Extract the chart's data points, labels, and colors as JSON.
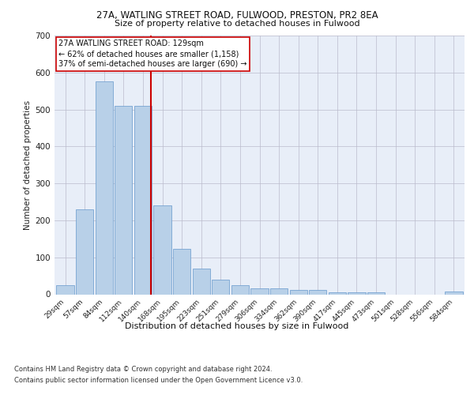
{
  "title1": "27A, WATLING STREET ROAD, FULWOOD, PRESTON, PR2 8EA",
  "title2": "Size of property relative to detached houses in Fulwood",
  "xlabel": "Distribution of detached houses by size in Fulwood",
  "ylabel": "Number of detached properties",
  "categories": [
    "29sqm",
    "57sqm",
    "84sqm",
    "112sqm",
    "140sqm",
    "168sqm",
    "195sqm",
    "223sqm",
    "251sqm",
    "279sqm",
    "306sqm",
    "334sqm",
    "362sqm",
    "390sqm",
    "417sqm",
    "445sqm",
    "473sqm",
    "501sqm",
    "528sqm",
    "556sqm",
    "584sqm"
  ],
  "values": [
    25,
    230,
    575,
    510,
    510,
    240,
    123,
    70,
    40,
    25,
    15,
    15,
    11,
    11,
    6,
    6,
    6,
    0,
    0,
    0,
    7
  ],
  "bar_color": "#b8d0e8",
  "bar_edgecolor": "#6699cc",
  "vline_color": "#cc0000",
  "annotation_lines": [
    "27A WATLING STREET ROAD: 129sqm",
    "← 62% of detached houses are smaller (1,158)",
    "37% of semi-detached houses are larger (690) →"
  ],
  "annotation_box_color": "#ffffff",
  "annotation_box_edgecolor": "#cc0000",
  "ylim": [
    0,
    700
  ],
  "yticks": [
    0,
    100,
    200,
    300,
    400,
    500,
    600,
    700
  ],
  "background_color": "#e8eef8",
  "footnote1": "Contains HM Land Registry data © Crown copyright and database right 2024.",
  "footnote2": "Contains public sector information licensed under the Open Government Licence v3.0."
}
